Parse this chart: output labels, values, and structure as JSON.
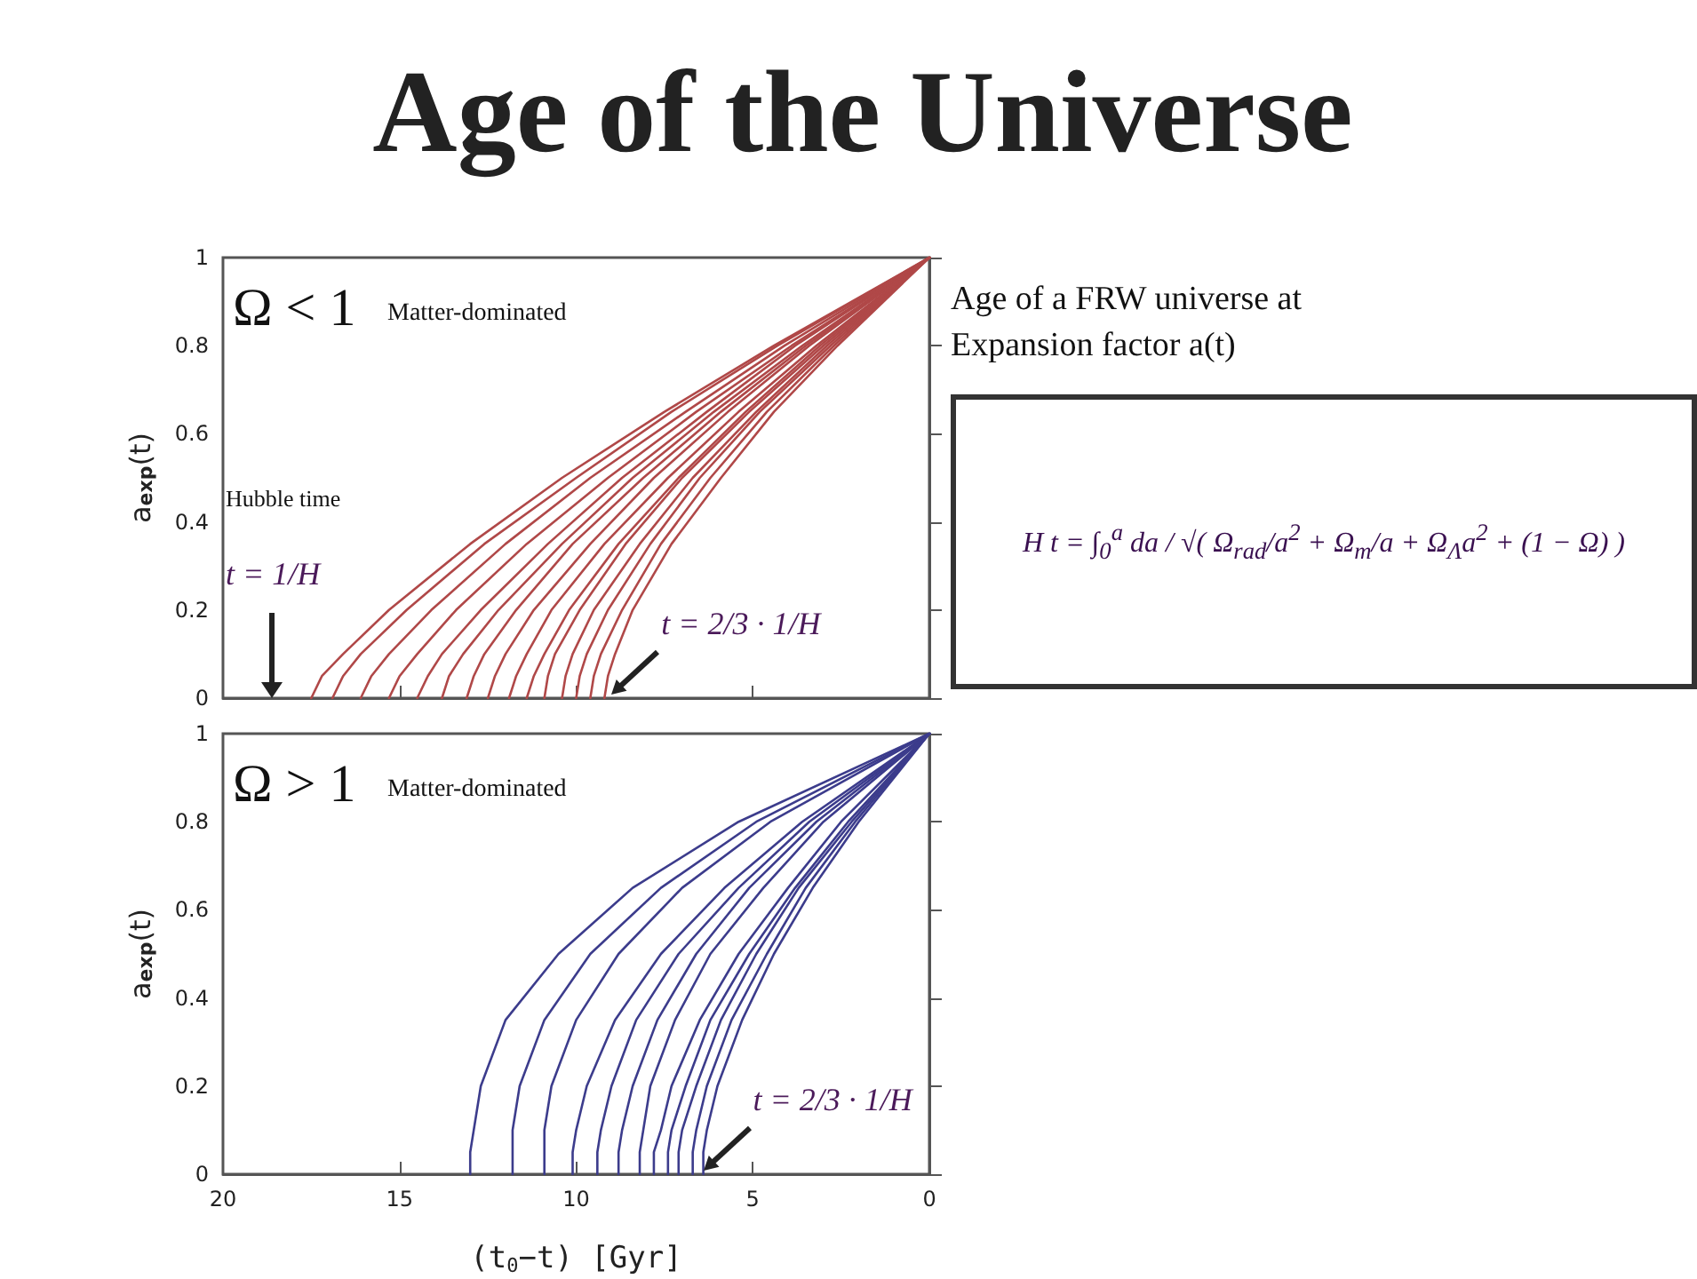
{
  "chart_data": [
    {
      "type": "line",
      "title": "Age of the Universe",
      "ylabel": "a$_{exp}$(t)",
      "xlim": [
        20,
        0
      ],
      "xticks": [
        20,
        15,
        10,
        5,
        0
      ],
      "ylim": [
        0,
        1
      ],
      "yticks": [
        0,
        0.2,
        0.4,
        0.6,
        0.8,
        1
      ],
      "tick_labels": "y",
      "grid": false,
      "marker": "none",
      "line_style": "solid",
      "annotations": [
        "Ω < 1",
        "Matter-dominated",
        "Hubble time",
        "t = 1/H",
        {
          "text": "t = 2/3 · 1/H",
          "x": 9,
          "y": 0
        }
      ],
      "series": [
        {
          "color": "#b04848",
          "x": [
            17.5,
            17.2,
            16.6,
            15.3,
            13.0,
            10.4,
            7.5,
            4.4,
            0
          ],
          "values": [
            0,
            0.05,
            0.1,
            0.2,
            0.35,
            0.5,
            0.65,
            0.8,
            1
          ]
        },
        {
          "color": "#b04848",
          "x": [
            16.9,
            16.6,
            16.1,
            14.8,
            12.6,
            10.0,
            7.3,
            4.3,
            0
          ],
          "values": [
            0,
            0.05,
            0.1,
            0.2,
            0.35,
            0.5,
            0.65,
            0.8,
            1
          ]
        },
        {
          "color": "#b04848",
          "x": [
            16.1,
            15.8,
            15.3,
            14.1,
            12.0,
            9.6,
            6.9,
            4.1,
            0
          ],
          "values": [
            0,
            0.05,
            0.1,
            0.2,
            0.35,
            0.5,
            0.65,
            0.8,
            1
          ]
        },
        {
          "color": "#b04848",
          "x": [
            15.3,
            15.0,
            14.5,
            13.4,
            11.4,
            9.1,
            6.6,
            3.9,
            0
          ],
          "values": [
            0,
            0.05,
            0.1,
            0.2,
            0.35,
            0.5,
            0.65,
            0.8,
            1
          ]
        },
        {
          "color": "#b04848",
          "x": [
            14.5,
            14.2,
            13.8,
            12.7,
            10.8,
            8.7,
            6.3,
            3.8,
            0
          ],
          "values": [
            0,
            0.05,
            0.1,
            0.2,
            0.35,
            0.5,
            0.65,
            0.8,
            1
          ]
        },
        {
          "color": "#b04848",
          "x": [
            13.8,
            13.6,
            13.2,
            12.2,
            10.4,
            8.4,
            6.1,
            3.6,
            0
          ],
          "values": [
            0,
            0.05,
            0.1,
            0.2,
            0.35,
            0.5,
            0.65,
            0.8,
            1
          ]
        },
        {
          "color": "#b04848",
          "x": [
            13.1,
            12.9,
            12.6,
            11.7,
            10.1,
            8.1,
            5.9,
            3.5,
            0
          ],
          "values": [
            0,
            0.05,
            0.1,
            0.2,
            0.35,
            0.5,
            0.65,
            0.8,
            1
          ]
        },
        {
          "color": "#b04848",
          "x": [
            12.5,
            12.3,
            12.0,
            11.2,
            9.6,
            7.8,
            5.7,
            3.4,
            0
          ],
          "values": [
            0,
            0.05,
            0.1,
            0.2,
            0.35,
            0.5,
            0.65,
            0.8,
            1
          ]
        },
        {
          "color": "#b04848",
          "x": [
            11.9,
            11.7,
            11.4,
            10.7,
            9.2,
            7.4,
            5.4,
            3.2,
            0
          ],
          "values": [
            0,
            0.05,
            0.1,
            0.2,
            0.35,
            0.5,
            0.65,
            0.8,
            1
          ]
        },
        {
          "color": "#b04848",
          "x": [
            11.4,
            11.2,
            10.9,
            10.2,
            8.8,
            7.1,
            5.2,
            3.1,
            0
          ],
          "values": [
            0,
            0.05,
            0.1,
            0.2,
            0.35,
            0.5,
            0.65,
            0.8,
            1
          ]
        },
        {
          "color": "#b04848",
          "x": [
            10.9,
            10.8,
            10.6,
            9.9,
            8.6,
            7.0,
            5.1,
            3.0,
            0
          ],
          "values": [
            0,
            0.05,
            0.1,
            0.2,
            0.35,
            0.5,
            0.65,
            0.8,
            1
          ]
        },
        {
          "color": "#b04848",
          "x": [
            10.4,
            10.3,
            10.1,
            9.5,
            8.2,
            6.7,
            4.9,
            2.9,
            0
          ],
          "values": [
            0,
            0.05,
            0.1,
            0.2,
            0.35,
            0.5,
            0.65,
            0.8,
            1
          ]
        },
        {
          "color": "#b04848",
          "x": [
            10.0,
            9.9,
            9.7,
            9.1,
            7.9,
            6.5,
            4.8,
            2.8,
            0
          ],
          "values": [
            0,
            0.05,
            0.1,
            0.2,
            0.35,
            0.5,
            0.65,
            0.8,
            1
          ]
        },
        {
          "color": "#b04848",
          "x": [
            9.6,
            9.5,
            9.3,
            8.7,
            7.6,
            6.2,
            4.6,
            2.7,
            0
          ],
          "values": [
            0,
            0.05,
            0.1,
            0.2,
            0.35,
            0.5,
            0.65,
            0.8,
            1
          ]
        },
        {
          "color": "#b04848",
          "x": [
            9.2,
            9.1,
            8.9,
            8.4,
            7.3,
            5.9,
            4.4,
            2.6,
            0
          ],
          "values": [
            0,
            0.05,
            0.1,
            0.2,
            0.35,
            0.5,
            0.65,
            0.8,
            1
          ]
        }
      ]
    },
    {
      "type": "line",
      "xlabel": "(t$_{0}$−t) [Gyr]",
      "ylabel": "a$_{exp}$(t)",
      "xlim": [
        20,
        0
      ],
      "xticks": [
        20,
        15,
        10,
        5,
        0
      ],
      "ylim": [
        0,
        1
      ],
      "yticks": [
        0,
        0.2,
        0.4,
        0.6,
        0.8,
        1
      ],
      "grid": false,
      "marker": "none",
      "line_style": "solid",
      "annotations": [
        "Ω > 1",
        "Matter-dominated",
        {
          "text": "t = 2/3 · 1/H",
          "x": 6.4,
          "y": 0
        }
      ],
      "series": [
        {
          "color": "#3c3c8c",
          "x": [
            13.0,
            13.0,
            12.9,
            12.7,
            12.0,
            10.5,
            8.4,
            5.4,
            0
          ],
          "values": [
            0,
            0.05,
            0.1,
            0.2,
            0.35,
            0.5,
            0.65,
            0.8,
            1
          ]
        },
        {
          "color": "#3c3c8c",
          "x": [
            11.8,
            11.8,
            11.8,
            11.6,
            10.9,
            9.6,
            7.6,
            4.9,
            0
          ],
          "values": [
            0,
            0.05,
            0.1,
            0.2,
            0.35,
            0.5,
            0.65,
            0.8,
            1
          ]
        },
        {
          "color": "#3c3c8c",
          "x": [
            10.9,
            10.9,
            10.9,
            10.7,
            10.0,
            8.8,
            7.0,
            4.5,
            0
          ],
          "values": [
            0,
            0.05,
            0.1,
            0.2,
            0.35,
            0.5,
            0.65,
            0.8,
            1
          ]
        },
        {
          "color": "#3c3c8c",
          "x": [
            10.1,
            10.1,
            10.0,
            9.7,
            8.9,
            7.6,
            5.8,
            3.6,
            0
          ],
          "values": [
            0,
            0.05,
            0.1,
            0.2,
            0.35,
            0.5,
            0.65,
            0.8,
            1
          ]
        },
        {
          "color": "#3c3c8c",
          "x": [
            9.4,
            9.4,
            9.3,
            9.0,
            8.3,
            7.1,
            5.4,
            3.4,
            0
          ],
          "values": [
            0,
            0.05,
            0.1,
            0.2,
            0.35,
            0.5,
            0.65,
            0.8,
            1
          ]
        },
        {
          "color": "#3c3c8c",
          "x": [
            8.8,
            8.8,
            8.7,
            8.4,
            7.7,
            6.6,
            5.1,
            3.2,
            0
          ],
          "values": [
            0,
            0.05,
            0.1,
            0.2,
            0.35,
            0.5,
            0.65,
            0.8,
            1
          ]
        },
        {
          "color": "#3c3c8c",
          "x": [
            8.2,
            8.2,
            8.1,
            7.9,
            7.2,
            6.2,
            4.7,
            3.0,
            0
          ],
          "values": [
            0,
            0.05,
            0.1,
            0.2,
            0.35,
            0.5,
            0.65,
            0.8,
            1
          ]
        },
        {
          "color": "#3c3c8c",
          "x": [
            7.8,
            7.8,
            7.6,
            7.3,
            6.5,
            5.4,
            4.0,
            2.5,
            0
          ],
          "values": [
            0,
            0.05,
            0.1,
            0.2,
            0.35,
            0.5,
            0.65,
            0.8,
            1
          ]
        },
        {
          "color": "#3c3c8c",
          "x": [
            7.4,
            7.4,
            7.3,
            6.9,
            6.2,
            5.1,
            3.8,
            2.3,
            0
          ],
          "values": [
            0,
            0.05,
            0.1,
            0.2,
            0.35,
            0.5,
            0.65,
            0.8,
            1
          ]
        },
        {
          "color": "#3c3c8c",
          "x": [
            7.1,
            7.1,
            7.0,
            6.6,
            5.9,
            4.9,
            3.7,
            2.2,
            0
          ],
          "values": [
            0,
            0.05,
            0.1,
            0.2,
            0.35,
            0.5,
            0.65,
            0.8,
            1
          ]
        },
        {
          "color": "#3c3c8c",
          "x": [
            6.7,
            6.7,
            6.6,
            6.3,
            5.6,
            4.6,
            3.5,
            2.1,
            0
          ],
          "values": [
            0,
            0.05,
            0.1,
            0.2,
            0.35,
            0.5,
            0.65,
            0.8,
            1
          ]
        },
        {
          "color": "#3c3c8c",
          "x": [
            6.4,
            6.4,
            6.3,
            6.0,
            5.3,
            4.4,
            3.3,
            2.0,
            0
          ],
          "values": [
            0,
            0.05,
            0.1,
            0.2,
            0.35,
            0.5,
            0.65,
            0.8,
            1
          ]
        }
      ]
    },
    {
      "type": "other",
      "annotations": [
        "Age of a FRW universe at Expansion factor a(t)",
        "H t = ∫$_{0}$$^{a}$ da / √( Ω$_{rad}$/a$^{2}$ + Ω$_{m}$/a + Ω$_{Λ}$a$^{2}$ + (1 − Ω) )"
      ]
    }
  ]
}
